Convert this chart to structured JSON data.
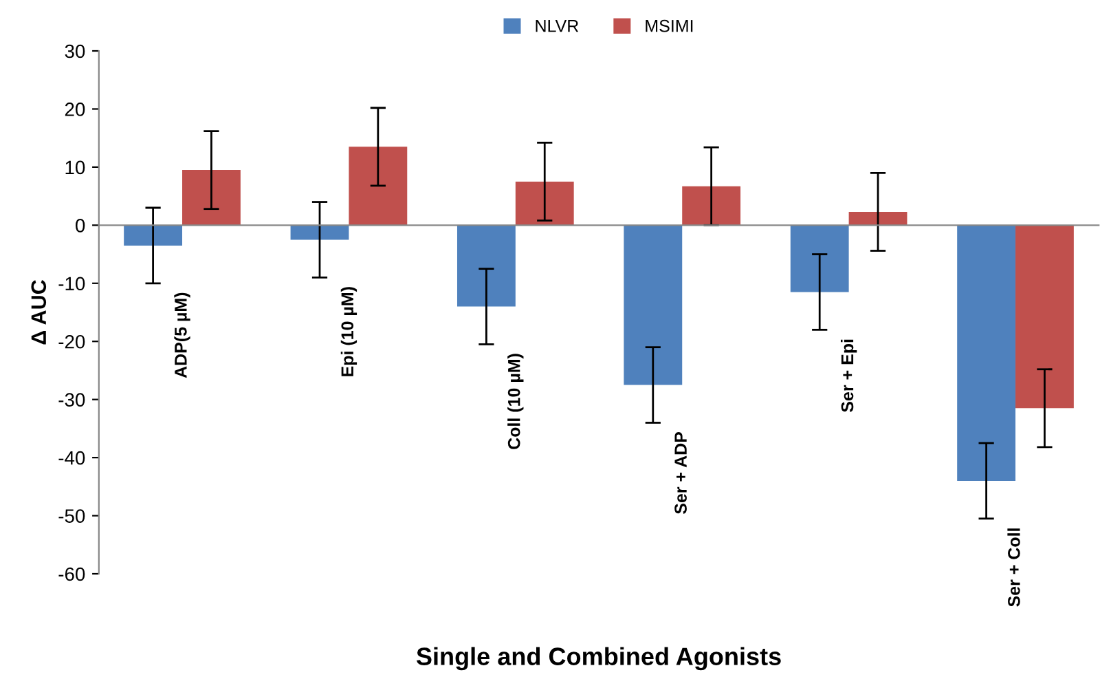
{
  "chart_data": {
    "type": "bar",
    "xlabel": "Single and Combined Agonists",
    "ylabel": "Δ AUC",
    "categories": [
      "ADP(5 µM)",
      "Epi (10 µM)",
      "Coll (10 µM)",
      "Ser + ADP",
      "Ser + Epi",
      "Ser + Coll"
    ],
    "series": [
      {
        "name": "NLVR",
        "color": "#4f81bd",
        "values": [
          -3.5,
          -2.5,
          -14,
          -27.5,
          -11.5,
          -44
        ],
        "errors": [
          6.5,
          6.5,
          6.5,
          6.5,
          6.5,
          6.5
        ]
      },
      {
        "name": "MSIMI",
        "color": "#c0504d",
        "values": [
          9.5,
          13.5,
          7.5,
          6.7,
          2.3,
          -31.5
        ],
        "errors": [
          6.7,
          6.7,
          6.7,
          6.7,
          6.7,
          6.7
        ]
      }
    ],
    "ylim": [
      -60,
      30
    ],
    "yticks": [
      -60,
      -50,
      -40,
      -30,
      -20,
      -10,
      0,
      10,
      20,
      30
    ],
    "legend": "top"
  }
}
